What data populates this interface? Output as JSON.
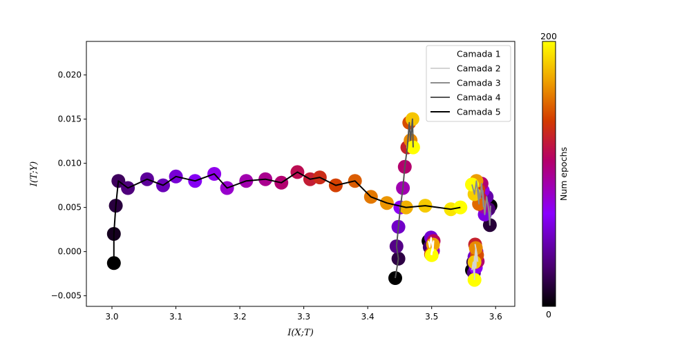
{
  "chart_data": {
    "type": "scatter",
    "xlabel": "I(X;T)",
    "ylabel": "I(T;Y)",
    "xlim": [
      2.96,
      3.63
    ],
    "ylim": [
      -0.0062,
      0.0238
    ],
    "xticks": [
      "3.0",
      "3.1",
      "3.2",
      "3.3",
      "3.4",
      "3.5",
      "3.6"
    ],
    "xtick_values": [
      3.0,
      3.1,
      3.2,
      3.3,
      3.4,
      3.5,
      3.6
    ],
    "yticks": [
      "−0.005",
      "0.000",
      "0.005",
      "0.010",
      "0.015",
      "0.020"
    ],
    "ytick_values": [
      -0.005,
      0.0,
      0.005,
      0.01,
      0.015,
      0.02
    ],
    "legend_position": "top-right",
    "colorbar": {
      "label": "Num epochs",
      "min_label": "0",
      "max_label": "200",
      "colormap": "gnuplot"
    },
    "series": [
      {
        "name": "Camada 1",
        "line_color": "#ffffff",
        "points": [
          [
            3.495,
            0.0012
          ],
          [
            3.497,
            0.0005
          ],
          [
            3.499,
            0.0016
          ],
          [
            3.502,
            0.0001
          ],
          [
            3.503,
            0.0012
          ],
          [
            3.499,
            -0.0003
          ],
          [
            3.502,
            0.0008
          ],
          [
            3.5,
            -0.0004
          ]
        ]
      },
      {
        "name": "Camada 2",
        "line_color": "#d3d3d3",
        "points": [
          [
            3.563,
            -0.0021
          ],
          [
            3.565,
            -0.0012
          ],
          [
            3.566,
            -0.0024
          ],
          [
            3.567,
            -0.0006
          ],
          [
            3.569,
            -0.0018
          ],
          [
            3.57,
            0.0
          ],
          [
            3.572,
            -0.0011
          ],
          [
            3.568,
            0.0008
          ],
          [
            3.571,
            -0.0004
          ],
          [
            3.569,
            0.0004
          ],
          [
            3.567,
            -0.0012
          ],
          [
            3.567,
            -0.0032
          ]
        ]
      },
      {
        "name": "Camada 3",
        "line_color": "#8c8c8c",
        "points": [
          [
            3.592,
            0.0052
          ],
          [
            3.591,
            0.003
          ],
          [
            3.589,
            0.0048
          ],
          [
            3.586,
            0.0062
          ],
          [
            3.583,
            0.0042
          ],
          [
            3.58,
            0.0069
          ],
          [
            3.581,
            0.0051
          ],
          [
            3.578,
            0.0077
          ],
          [
            3.576,
            0.006
          ],
          [
            3.573,
            0.007
          ],
          [
            3.574,
            0.0054
          ],
          [
            3.57,
            0.008
          ],
          [
            3.567,
            0.0065
          ],
          [
            3.563,
            0.0076
          ]
        ]
      },
      {
        "name": "Camada 4",
        "line_color": "#555555",
        "points": [
          [
            3.443,
            -0.003
          ],
          [
            3.448,
            -0.0008
          ],
          [
            3.445,
            0.0006
          ],
          [
            3.448,
            0.0028
          ],
          [
            3.451,
            0.005
          ],
          [
            3.455,
            0.0072
          ],
          [
            3.458,
            0.0096
          ],
          [
            3.462,
            0.0118
          ],
          [
            3.465,
            0.0146
          ],
          [
            3.467,
            0.0126
          ],
          [
            3.47,
            0.015
          ],
          [
            3.471,
            0.0118
          ]
        ]
      },
      {
        "name": "Camada 5",
        "line_color": "#000000",
        "points": [
          [
            3.003,
            -0.0013
          ],
          [
            3.003,
            0.002
          ],
          [
            3.006,
            0.0052
          ],
          [
            3.01,
            0.008
          ],
          [
            3.025,
            0.0072
          ],
          [
            3.055,
            0.0082
          ],
          [
            3.08,
            0.0075
          ],
          [
            3.1,
            0.0085
          ],
          [
            3.13,
            0.008
          ],
          [
            3.16,
            0.0088
          ],
          [
            3.18,
            0.0072
          ],
          [
            3.21,
            0.008
          ],
          [
            3.24,
            0.0082
          ],
          [
            3.265,
            0.0078
          ],
          [
            3.29,
            0.009
          ],
          [
            3.31,
            0.0082
          ],
          [
            3.325,
            0.0084
          ],
          [
            3.35,
            0.0075
          ],
          [
            3.38,
            0.008
          ],
          [
            3.405,
            0.0062
          ],
          [
            3.43,
            0.0055
          ],
          [
            3.46,
            0.005
          ],
          [
            3.49,
            0.0052
          ],
          [
            3.53,
            0.0048
          ],
          [
            3.545,
            0.005
          ]
        ]
      }
    ]
  }
}
